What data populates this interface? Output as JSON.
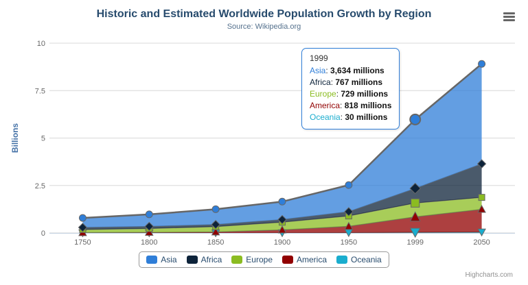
{
  "chart_data": {
    "type": "area",
    "stacked": true,
    "title": "Historic and Estimated Worldwide Population Growth by Region",
    "subtitle": "Source: Wikipedia.org",
    "ylabel": "Billions",
    "xlabel": "",
    "unit": "millions",
    "grid": true,
    "legend_position": "bottom",
    "categories": [
      "1750",
      "1800",
      "1850",
      "1900",
      "1950",
      "1999",
      "2050"
    ],
    "ylim": [
      0,
      10
    ],
    "yticks": [
      {
        "value": 0,
        "label": "0"
      },
      {
        "value": 2.5,
        "label": "2.5"
      },
      {
        "value": 5,
        "label": "5"
      },
      {
        "value": 7.5,
        "label": "7.5"
      },
      {
        "value": 10,
        "label": "10"
      }
    ],
    "series": [
      {
        "name": "Asia",
        "color": "#2f7ed8",
        "marker": "circle",
        "values": [
          502,
          635,
          809,
          947,
          1402,
          3634,
          5268
        ]
      },
      {
        "name": "Africa",
        "color": "#0d233a",
        "marker": "diamond",
        "values": [
          106,
          107,
          111,
          133,
          221,
          767,
          1766
        ]
      },
      {
        "name": "Europe",
        "color": "#8bbc21",
        "marker": "square",
        "values": [
          163,
          203,
          276,
          408,
          547,
          729,
          628
        ]
      },
      {
        "name": "America",
        "color": "#910000",
        "marker": "triangle",
        "values": [
          18,
          31,
          54,
          156,
          339,
          818,
          1201
        ]
      },
      {
        "name": "Oceania",
        "color": "#1aadce",
        "marker": "triangle-down",
        "values": [
          2,
          2,
          2,
          6,
          13,
          30,
          46
        ]
      }
    ],
    "stack_order_bottom_to_top": [
      "Oceania",
      "America",
      "Europe",
      "Africa",
      "Asia"
    ],
    "line_color": "#666666",
    "grid_color": "#d8d8d8",
    "axis_line_color": "#c0d0e0",
    "axis_label_color": "#666666",
    "y_axis_title_color": "#4572a7",
    "fill_opacity": 0.75,
    "hover_category": "1999",
    "hover_series": "Asia"
  },
  "tooltip": {
    "header": "1999",
    "border_color": "#2f7ed8",
    "rows": [
      {
        "name": "Asia",
        "value": "3,634 millions",
        "color": "#2f7ed8"
      },
      {
        "name": "Africa",
        "value": "767 millions",
        "color": "#0d233a"
      },
      {
        "name": "Europe",
        "value": "729 millions",
        "color": "#8bbc21"
      },
      {
        "name": "America",
        "value": "818 millions",
        "color": "#910000"
      },
      {
        "name": "Oceania",
        "value": "30 millions",
        "color": "#1aadce"
      }
    ]
  },
  "legend": {
    "items": [
      {
        "label": "Asia",
        "color": "#2f7ed8"
      },
      {
        "label": "Africa",
        "color": "#0d233a"
      },
      {
        "label": "Europe",
        "color": "#8bbc21"
      },
      {
        "label": "America",
        "color": "#910000"
      },
      {
        "label": "Oceania",
        "color": "#1aadce"
      }
    ]
  },
  "menu": {
    "icon": "hamburger-menu-icon"
  },
  "credits": {
    "label": "Highcharts.com"
  }
}
